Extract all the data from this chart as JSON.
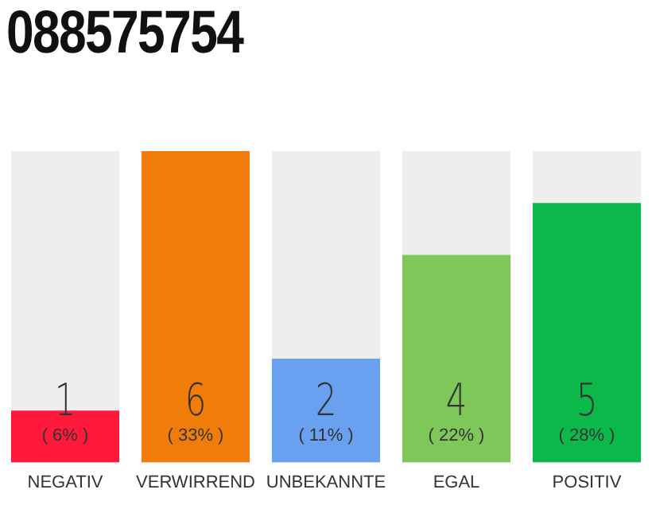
{
  "chart_data": {
    "type": "bar",
    "title": "088575754",
    "categories": [
      "NEGATIV",
      "VERWIRREND",
      "UNBEKANNTE",
      "EGAL",
      "POSITIV"
    ],
    "values": [
      1,
      6,
      2,
      4,
      5
    ],
    "colors": [
      "#ff1a3c",
      "#f07d0a",
      "#6aa0f0",
      "#7ec85a",
      "#0cb84a"
    ],
    "value_labels": [
      "1",
      "6",
      "2",
      "4",
      "5"
    ],
    "annotations": [
      "( 6% )",
      "( 33% )",
      "( 11% )",
      "( 22% )",
      "( 28% )"
    ],
    "tick_labels": "x",
    "grid": false,
    "legend": false
  }
}
